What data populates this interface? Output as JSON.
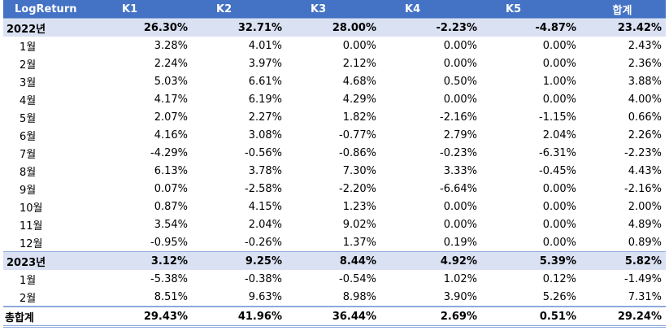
{
  "header": [
    "LogReturn",
    "K1",
    "K2",
    "K3",
    "K4",
    "K5",
    "합계"
  ],
  "groups": [
    {
      "label": "2022년",
      "values": [
        "26.30%",
        "32.71%",
        "28.00%",
        "-2.23%",
        "-4.87%",
        "23.42%"
      ],
      "months": [
        {
          "label": "1월",
          "values": [
            "3.28%",
            "4.01%",
            "0.00%",
            "0.00%",
            "0.00%",
            "2.43%"
          ]
        },
        {
          "label": "2월",
          "values": [
            "2.24%",
            "3.97%",
            "2.12%",
            "0.00%",
            "0.00%",
            "2.36%"
          ]
        },
        {
          "label": "3월",
          "values": [
            "5.03%",
            "6.61%",
            "4.68%",
            "0.50%",
            "1.00%",
            "3.88%"
          ]
        },
        {
          "label": "4월",
          "values": [
            "4.17%",
            "6.19%",
            "4.29%",
            "0.00%",
            "0.00%",
            "4.00%"
          ]
        },
        {
          "label": "5월",
          "values": [
            "2.07%",
            "2.27%",
            "1.82%",
            "-2.16%",
            "-1.15%",
            "0.66%"
          ]
        },
        {
          "label": "6월",
          "values": [
            "4.16%",
            "3.08%",
            "-0.77%",
            "2.79%",
            "2.04%",
            "2.26%"
          ]
        },
        {
          "label": "7월",
          "values": [
            "-4.29%",
            "-0.56%",
            "-0.86%",
            "-0.23%",
            "-6.31%",
            "-2.23%"
          ]
        },
        {
          "label": "8월",
          "values": [
            "6.13%",
            "3.78%",
            "7.30%",
            "3.33%",
            "-0.45%",
            "4.43%"
          ]
        },
        {
          "label": "9월",
          "values": [
            "0.07%",
            "-2.58%",
            "-2.20%",
            "-6.64%",
            "0.00%",
            "-2.16%"
          ]
        },
        {
          "label": "10월",
          "values": [
            "0.87%",
            "4.15%",
            "1.23%",
            "0.00%",
            "0.00%",
            "2.00%"
          ]
        },
        {
          "label": "11월",
          "values": [
            "3.54%",
            "2.04%",
            "9.02%",
            "0.00%",
            "0.00%",
            "4.89%"
          ]
        },
        {
          "label": "12월",
          "values": [
            "-0.95%",
            "-0.26%",
            "1.37%",
            "0.19%",
            "0.00%",
            "0.89%"
          ]
        }
      ]
    },
    {
      "label": "2023년",
      "values": [
        "3.12%",
        "9.25%",
        "8.44%",
        "4.92%",
        "5.39%",
        "5.82%"
      ],
      "months": [
        {
          "label": "1월",
          "values": [
            "-5.38%",
            "-0.38%",
            "-0.54%",
            "1.02%",
            "0.12%",
            "-1.49%"
          ]
        },
        {
          "label": "2월",
          "values": [
            "8.51%",
            "9.63%",
            "8.98%",
            "3.90%",
            "5.26%",
            "7.31%"
          ]
        }
      ]
    }
  ],
  "total": {
    "label": "총합계",
    "values": [
      "29.43%",
      "41.96%",
      "36.44%",
      "2.69%",
      "0.51%",
      "29.24%"
    ]
  },
  "colors": {
    "header_bg": "#4472c4",
    "header_text": "#ffffff",
    "group_row_bg": "#d9e1f2",
    "border": "#8ea9db"
  }
}
